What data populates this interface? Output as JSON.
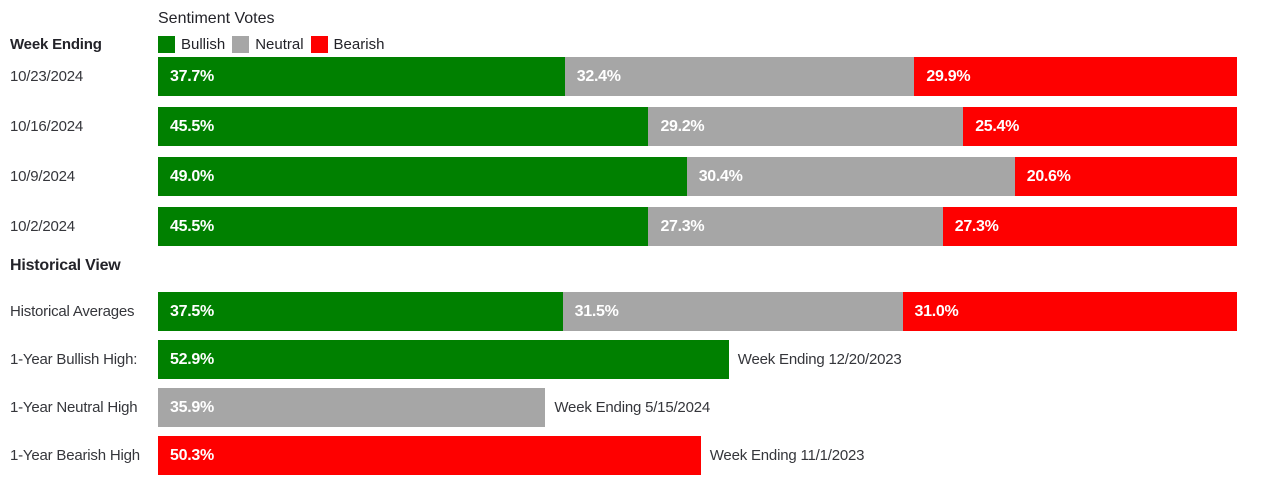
{
  "title": "Sentiment Votes",
  "week_ending_header": "Week Ending",
  "historical_header": "Historical View",
  "colors": {
    "bullish": "#008000",
    "neutral": "#a6a6a6",
    "bearish": "#fe0000",
    "value_text": "#ffffff",
    "label_text": "#35363b",
    "header_text": "#232329"
  },
  "legend": [
    {
      "label": "Bullish",
      "key": "bullish"
    },
    {
      "label": "Neutral",
      "key": "neutral"
    },
    {
      "label": "Bearish",
      "key": "bearish"
    }
  ],
  "chart_data": {
    "type": "bar",
    "subtype": "horizontal-stacked",
    "title": "Sentiment Votes",
    "unit": "%",
    "xlim": [
      0,
      100
    ],
    "legend": [
      "Bullish",
      "Neutral",
      "Bearish"
    ],
    "weekly_rows": [
      {
        "label": "10/23/2024",
        "bullish": 37.7,
        "neutral": 32.4,
        "bearish": 29.9
      },
      {
        "label": "10/16/2024",
        "bullish": 45.5,
        "neutral": 29.2,
        "bearish": 25.4
      },
      {
        "label": "10/9/2024",
        "bullish": 49.0,
        "neutral": 30.4,
        "bearish": 20.6
      },
      {
        "label": "10/2/2024",
        "bullish": 45.5,
        "neutral": 27.3,
        "bearish": 27.3
      }
    ],
    "historical_average_row": {
      "label": "Historical Averages",
      "bullish": 37.5,
      "neutral": 31.5,
      "bearish": 31.0
    },
    "historical_high_rows": [
      {
        "label": "1-Year Bullish High:",
        "key": "bullish",
        "value": 52.9,
        "annotation": "Week Ending 12/20/2023"
      },
      {
        "label": "1-Year Neutral High",
        "key": "neutral",
        "value": 35.9,
        "annotation": "Week Ending 5/15/2024"
      },
      {
        "label": "1-Year Bearish High",
        "key": "bearish",
        "value": 50.3,
        "annotation": "Week Ending 11/1/2023"
      }
    ]
  }
}
